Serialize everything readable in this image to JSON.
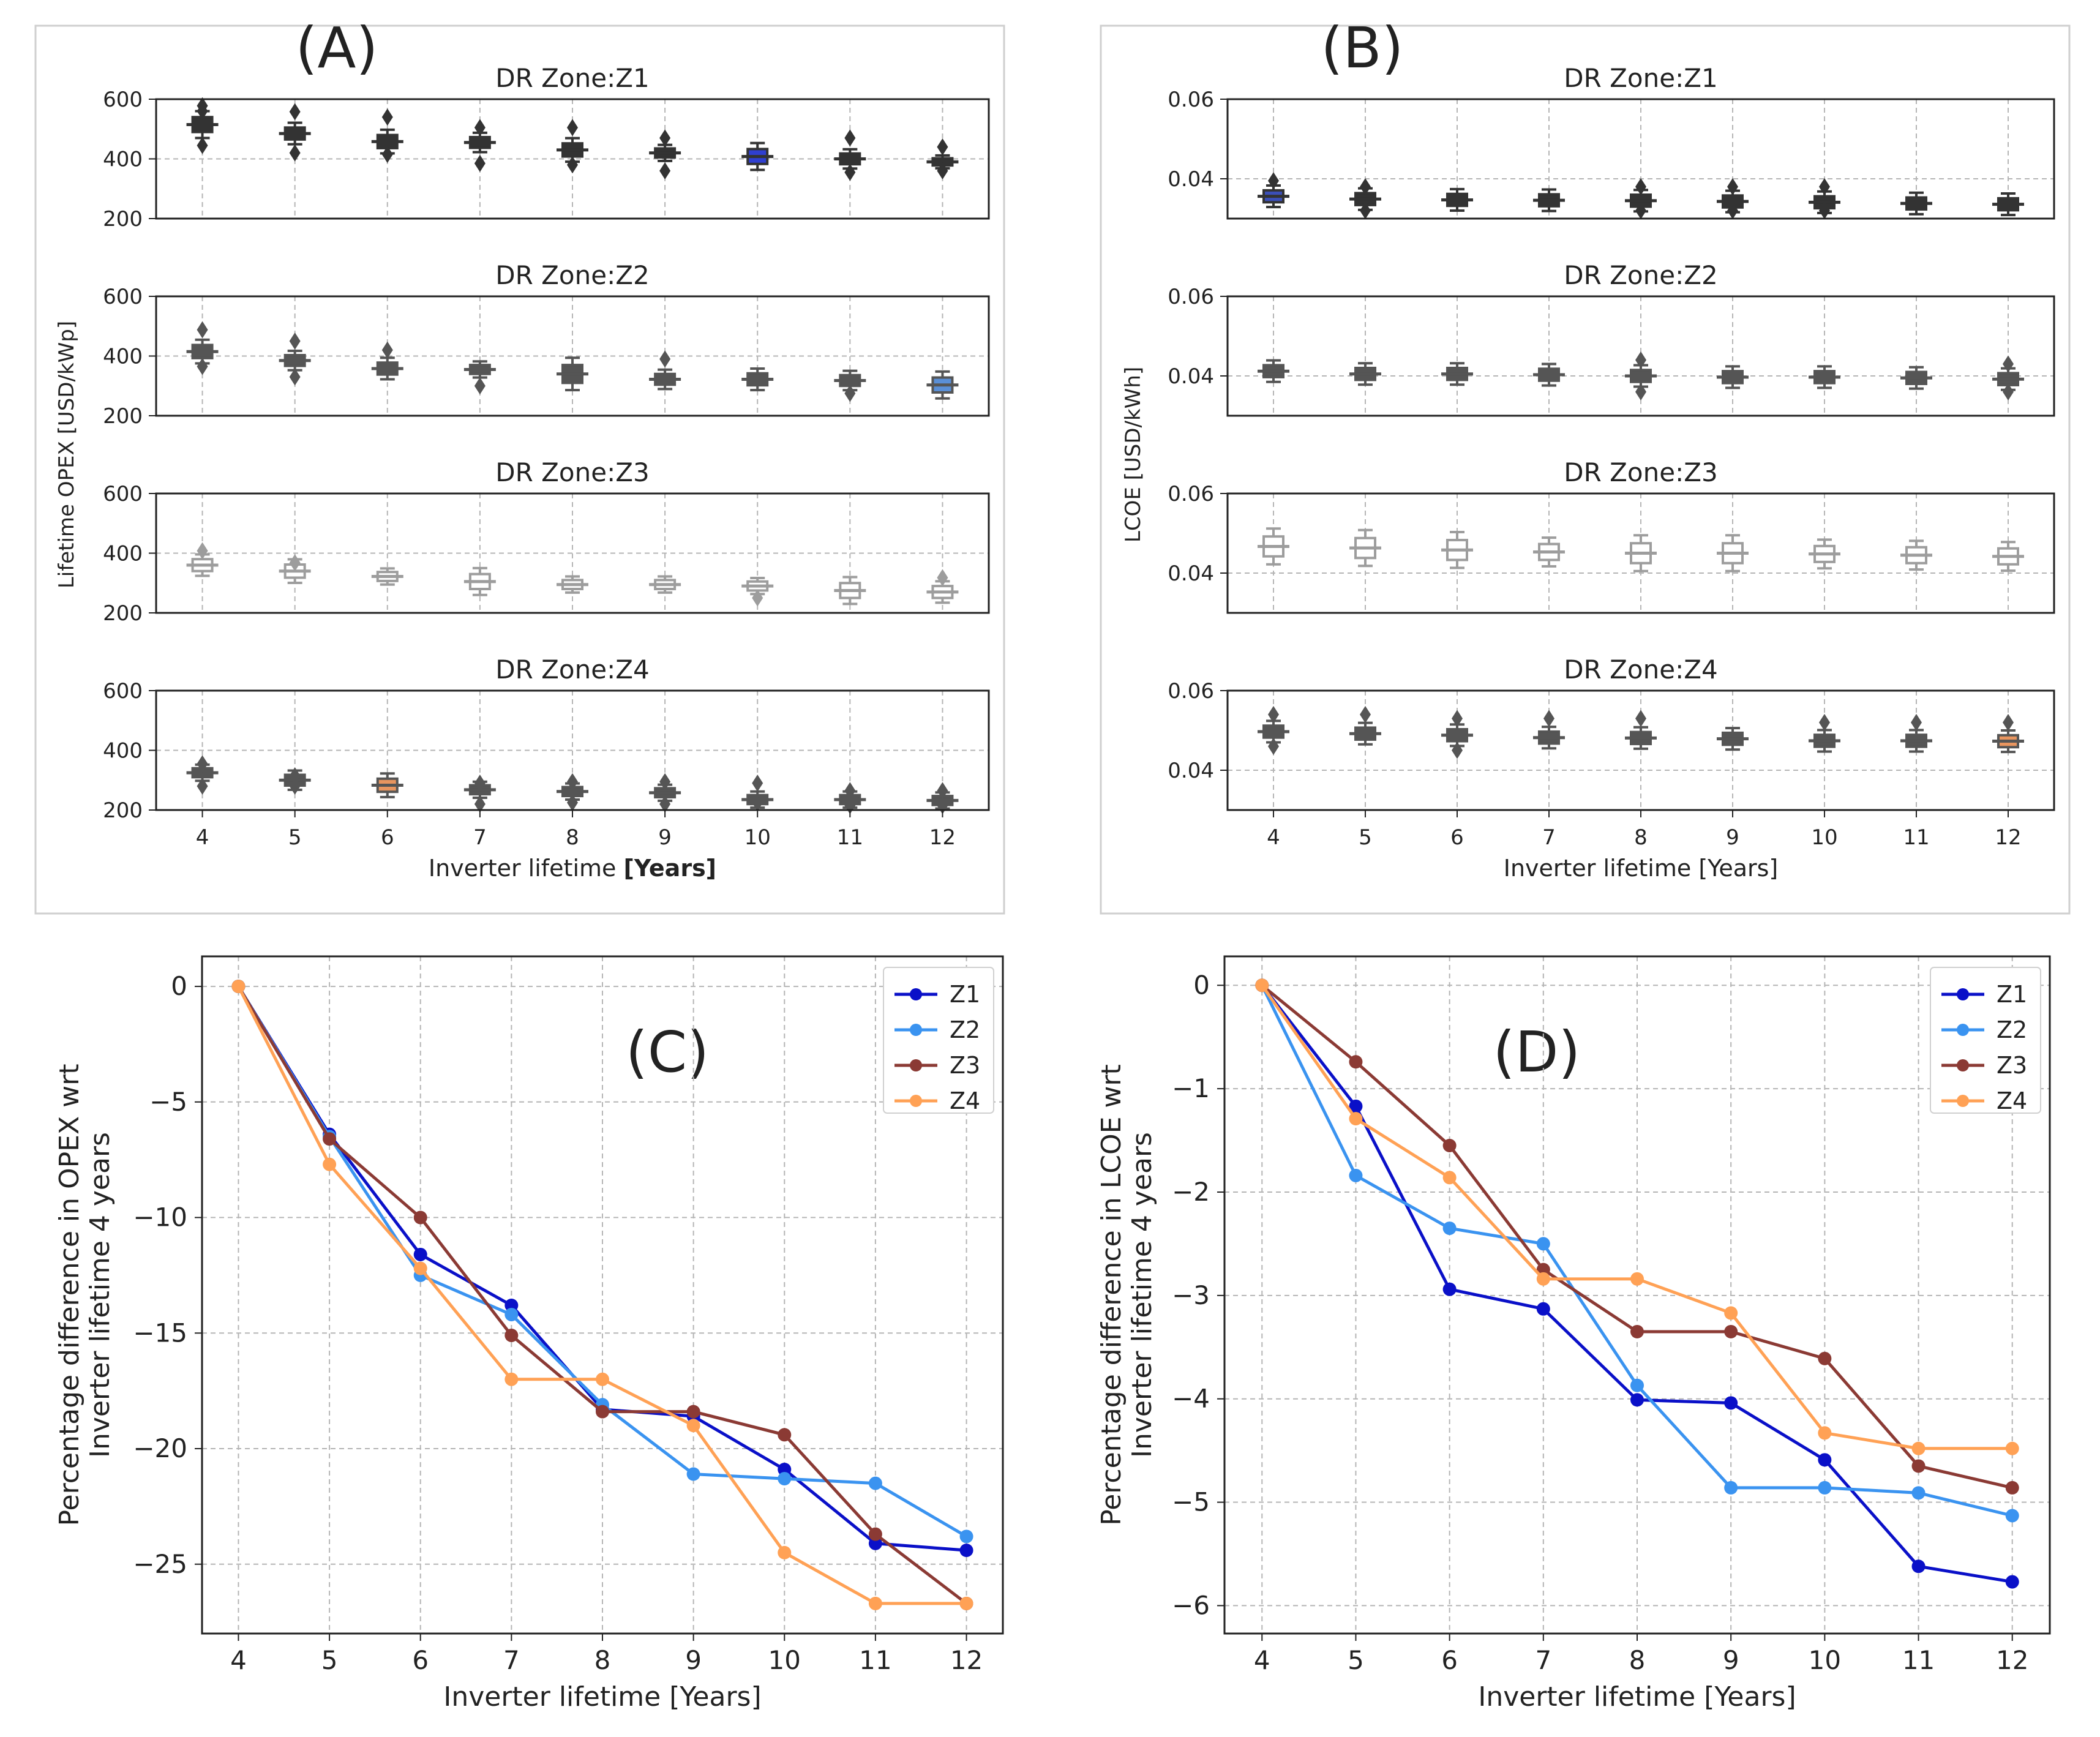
{
  "figure_labels": {
    "a": "(A)",
    "b": "(B)",
    "c": "(C)",
    "d": "(D)"
  },
  "colors": {
    "Z1": "#0a10c8",
    "Z2": "#3a93f0",
    "Z3": "#8b3a34",
    "Z4": "#ffa155",
    "box_Z1": "#333333",
    "box_Z2": "#555555",
    "box_Z3": "#9d9d9d",
    "box_Z4": "#555555"
  },
  "chart_data": [
    {
      "id": "A",
      "type": "box",
      "ylabel": "Lifetime OPEX [USD/kWp]",
      "xlabel_main": "Inverter lifetime",
      "xlabel_unit": "[Years]",
      "categories": [
        "4",
        "5",
        "6",
        "7",
        "8",
        "9",
        "10",
        "11",
        "12"
      ],
      "yticks": [
        "200",
        "400",
        "600"
      ],
      "ylim": [
        200,
        600
      ],
      "panels": [
        {
          "title": "DR Zone:Z1",
          "medians": [
            515,
            485,
            458,
            455,
            430,
            420,
            408,
            400,
            390
          ],
          "spreads": [
            25,
            20,
            22,
            18,
            22,
            15,
            25,
            18,
            12
          ],
          "outliers": [
            [
              578,
              560,
              445
            ],
            [
              558,
              420
            ],
            [
              540,
              415
            ],
            [
              505,
              385
            ],
            [
              505,
              380
            ],
            [
              470,
              360
            ],
            [],
            [
              470,
              355
            ],
            [
              440,
              360
            ]
          ],
          "highlight": {
            "index": 6,
            "color": "#2f3fd0"
          }
        },
        {
          "title": "DR Zone:Z2",
          "medians": [
            415,
            385,
            358,
            355,
            340,
            322,
            322,
            318,
            303
          ],
          "spreads": [
            22,
            18,
            20,
            15,
            30,
            18,
            20,
            18,
            25
          ],
          "outliers": [
            [
              488,
              365
            ],
            [
              450,
              330
            ],
            [
              420
            ],
            [
              300
            ],
            [],
            [
              390
            ],
            [],
            [
              275
            ],
            []
          ],
          "highlight": {
            "index": 8,
            "color": "#5a8fd6"
          }
        },
        {
          "title": "DR Zone:Z3",
          "medians": [
            360,
            340,
            322,
            305,
            295,
            295,
            290,
            275,
            270
          ],
          "spreads": [
            20,
            22,
            15,
            25,
            15,
            15,
            15,
            25,
            20
          ],
          "outliers": [
            [
              408
            ],
            [
              368
            ],
            [],
            [],
            [],
            [],
            [
              250
            ],
            [],
            [
              318
            ]
          ],
          "highlight": {
            "index": -1,
            "color": "#9d9d9d"
          }
        },
        {
          "title": "DR Zone:Z4",
          "medians": [
            325,
            300,
            283,
            268,
            262,
            258,
            235,
            235,
            232
          ],
          "spreads": [
            15,
            18,
            22,
            15,
            15,
            15,
            15,
            15,
            15
          ],
          "outliers": [
            [
              355,
              280
            ],
            [
              315,
              280
            ],
            [],
            [
              290,
              220
            ],
            [
              295,
              225
            ],
            [
              295,
              220
            ],
            [
              290,
              225
            ],
            [
              265,
              215
            ],
            [
              265,
              215
            ]
          ],
          "highlight": {
            "index": 2,
            "color": "#e8955f"
          }
        }
      ]
    },
    {
      "id": "B",
      "type": "box",
      "ylabel": "LCOE [USD/kWh]",
      "xlabel_main": "Inverter lifetime",
      "xlabel_unit": "[Years]",
      "categories": [
        "4",
        "5",
        "6",
        "7",
        "8",
        "9",
        "10",
        "11",
        "12"
      ],
      "yticks": [
        "0.04",
        "0.06"
      ],
      "ylim": [
        0.03,
        0.06
      ],
      "panels": [
        {
          "title": "DR Zone:Z1",
          "medians": [
            0.0356,
            0.0349,
            0.0347,
            0.0346,
            0.0345,
            0.0343,
            0.0341,
            0.0338,
            0.0336
          ],
          "spreads": [
            0.0015,
            0.0015,
            0.0015,
            0.0015,
            0.0015,
            0.0015,
            0.0015,
            0.0015,
            0.0015
          ],
          "outliers": [
            [
              0.0395
            ],
            [
              0.038,
              0.032
            ],
            [],
            [],
            [
              0.038,
              0.032
            ],
            [
              0.038,
              0.032
            ],
            [
              0.038,
              0.032
            ],
            [],
            []
          ],
          "highlight": {
            "index": 0,
            "color": "#3b4fb8"
          }
        },
        {
          "title": "DR Zone:Z2",
          "medians": [
            0.0412,
            0.0405,
            0.0405,
            0.0403,
            0.04,
            0.0397,
            0.0397,
            0.0395,
            0.0392
          ],
          "spreads": [
            0.0015,
            0.0015,
            0.0015,
            0.0015,
            0.0015,
            0.0015,
            0.0015,
            0.0015,
            0.0015
          ],
          "outliers": [
            [],
            [],
            [],
            [],
            [
              0.044,
              0.036
            ],
            [],
            [],
            [],
            [
              0.043,
              0.036
            ]
          ],
          "highlight": {
            "index": -1,
            "color": "#555555"
          }
        },
        {
          "title": "DR Zone:Z3",
          "medians": [
            0.0467,
            0.0463,
            0.0458,
            0.0453,
            0.045,
            0.045,
            0.0448,
            0.0445,
            0.0442
          ],
          "spreads": [
            0.0025,
            0.0025,
            0.0025,
            0.002,
            0.0025,
            0.0025,
            0.002,
            0.002,
            0.002
          ],
          "outliers": [
            [],
            [],
            [],
            [],
            [],
            [],
            [],
            [],
            []
          ],
          "highlight": {
            "index": -1,
            "color": "#9d9d9d"
          }
        },
        {
          "title": "DR Zone:Z4",
          "medians": [
            0.0497,
            0.0492,
            0.0488,
            0.0482,
            0.0481,
            0.0479,
            0.0474,
            0.0474,
            0.0473
          ],
          "spreads": [
            0.0015,
            0.0015,
            0.0015,
            0.0015,
            0.0015,
            0.0015,
            0.0015,
            0.0015,
            0.0015
          ],
          "outliers": [
            [
              0.054,
              0.046
            ],
            [
              0.054
            ],
            [
              0.053,
              0.045
            ],
            [
              0.053
            ],
            [
              0.053
            ],
            [],
            [
              0.052
            ],
            [
              0.052
            ],
            [
              0.052
            ]
          ],
          "highlight": {
            "index": 8,
            "color": "#e8955f"
          }
        }
      ]
    },
    {
      "id": "C",
      "type": "line",
      "xlabel": "Inverter lifetime [Years]",
      "ylabel_line1": "Percentage difference in OPEX wrt",
      "ylabel_line2": "Inverter lifetime 4 years",
      "x": [
        4,
        5,
        6,
        7,
        8,
        9,
        10,
        11,
        12
      ],
      "xticks": [
        "4",
        "5",
        "6",
        "7",
        "8",
        "9",
        "10",
        "11",
        "12"
      ],
      "yticks": [
        "0",
        "−5",
        "−10",
        "−15",
        "−20",
        "−25"
      ],
      "ytick_values": [
        0,
        -5,
        -10,
        -15,
        -20,
        -25
      ],
      "xlim": [
        3.6,
        12.4
      ],
      "ylim": [
        -28.0,
        1.3
      ],
      "legend": [
        "Z1",
        "Z2",
        "Z3",
        "Z4"
      ],
      "series": [
        {
          "name": "Z1",
          "values": [
            0,
            -6.4,
            -11.6,
            -13.8,
            -18.3,
            -18.6,
            -20.9,
            -24.1,
            -24.4
          ]
        },
        {
          "name": "Z2",
          "values": [
            0,
            -6.5,
            -12.5,
            -14.2,
            -18.1,
            -21.1,
            -21.3,
            -21.5,
            -23.8
          ]
        },
        {
          "name": "Z3",
          "values": [
            0,
            -6.6,
            -10.0,
            -15.1,
            -18.4,
            -18.4,
            -19.4,
            -23.7,
            -26.7
          ]
        },
        {
          "name": "Z4",
          "values": [
            0,
            -7.7,
            -12.2,
            -17.0,
            -17.0,
            -19.0,
            -24.5,
            -26.7,
            -26.7
          ]
        }
      ]
    },
    {
      "id": "D",
      "type": "line",
      "xlabel": "Inverter lifetime [Years]",
      "ylabel_line1": "Percentage difference in LCOE wrt",
      "ylabel_line2": "Inverter lifetime 4 years",
      "x": [
        4,
        5,
        6,
        7,
        8,
        9,
        10,
        11,
        12
      ],
      "xticks": [
        "4",
        "5",
        "6",
        "7",
        "8",
        "9",
        "10",
        "11",
        "12"
      ],
      "yticks": [
        "0",
        "−1",
        "−2",
        "−3",
        "−4",
        "−5",
        "−6"
      ],
      "ytick_values": [
        0,
        -1,
        -2,
        -3,
        -4,
        -5,
        -6
      ],
      "xlim": [
        3.6,
        12.4
      ],
      "ylim": [
        -6.27,
        0.28
      ],
      "legend": [
        "Z1",
        "Z2",
        "Z3",
        "Z4"
      ],
      "series": [
        {
          "name": "Z1",
          "values": [
            0,
            -1.17,
            -2.94,
            -3.13,
            -4.01,
            -4.04,
            -4.59,
            -5.62,
            -5.77
          ]
        },
        {
          "name": "Z2",
          "values": [
            0,
            -1.84,
            -2.35,
            -2.5,
            -3.87,
            -4.86,
            -4.86,
            -4.91,
            -5.13
          ]
        },
        {
          "name": "Z3",
          "values": [
            0,
            -0.74,
            -1.55,
            -2.75,
            -3.35,
            -3.35,
            -3.61,
            -4.65,
            -4.86
          ]
        },
        {
          "name": "Z4",
          "values": [
            0,
            -1.29,
            -1.86,
            -2.84,
            -2.84,
            -3.17,
            -4.33,
            -4.48,
            -4.48
          ]
        }
      ]
    }
  ]
}
